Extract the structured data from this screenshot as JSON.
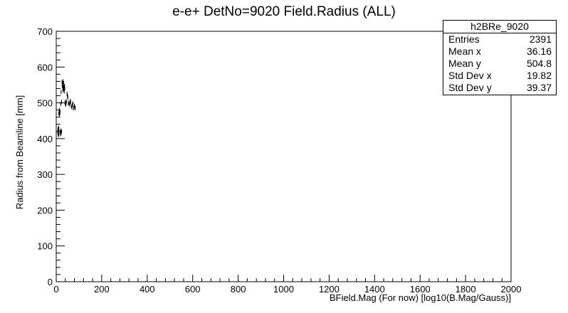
{
  "chart_data": {
    "type": "scatter",
    "title": "e-e+ DetNo=9020 Field.Radius (ALL)",
    "xlabel": "BField.Mag (For now) [log10(B.Mag/Gauss)]",
    "ylabel": "Radius from Beamline [mm]",
    "xlim": [
      0,
      2000
    ],
    "ylim": [
      0,
      700
    ],
    "x_ticks": [
      0,
      200,
      400,
      600,
      800,
      1000,
      1200,
      1400,
      1600,
      1800,
      2000
    ],
    "y_ticks": [
      0,
      100,
      200,
      300,
      400,
      500,
      600,
      700
    ],
    "grid": false,
    "series": [
      {
        "name": "h2BRe_9020",
        "x": [
          5,
          6,
          7,
          8,
          9,
          10,
          12,
          13,
          14,
          15,
          16,
          18,
          20,
          22,
          24,
          25,
          26,
          27,
          28,
          28,
          29,
          30,
          31,
          32,
          33,
          34,
          35,
          36,
          37,
          38,
          40,
          42,
          44,
          46,
          48,
          50,
          52,
          55,
          58,
          60,
          62,
          65,
          68,
          70,
          72,
          75,
          78,
          80,
          82,
          12,
          15,
          18,
          22,
          20,
          9,
          10
        ],
        "y": [
          418,
          425,
          412,
          430,
          420,
          470,
          472,
          468,
          476,
          418,
          413,
          422,
          415,
          420,
          558,
          548,
          552,
          542,
          560,
          535,
          540,
          548,
          555,
          538,
          545,
          532,
          547,
          540,
          502,
          498,
          495,
          500,
          505,
          525,
          520,
          515,
          498,
          500,
          495,
          505,
          502,
          490,
          487,
          495,
          498,
          485,
          492,
          488,
          485,
          480,
          473,
          497,
          503,
          530,
          410,
          428
        ]
      }
    ]
  },
  "stats": {
    "name": "h2BRe_9020",
    "rows": [
      {
        "label": "Entries",
        "value": "2391"
      },
      {
        "label": "Mean x",
        "value": "36.16"
      },
      {
        "label": "Mean y",
        "value": "504.8"
      },
      {
        "label": "Std Dev x",
        "value": "19.82"
      },
      {
        "label": "Std Dev y",
        "value": "39.37"
      }
    ]
  }
}
